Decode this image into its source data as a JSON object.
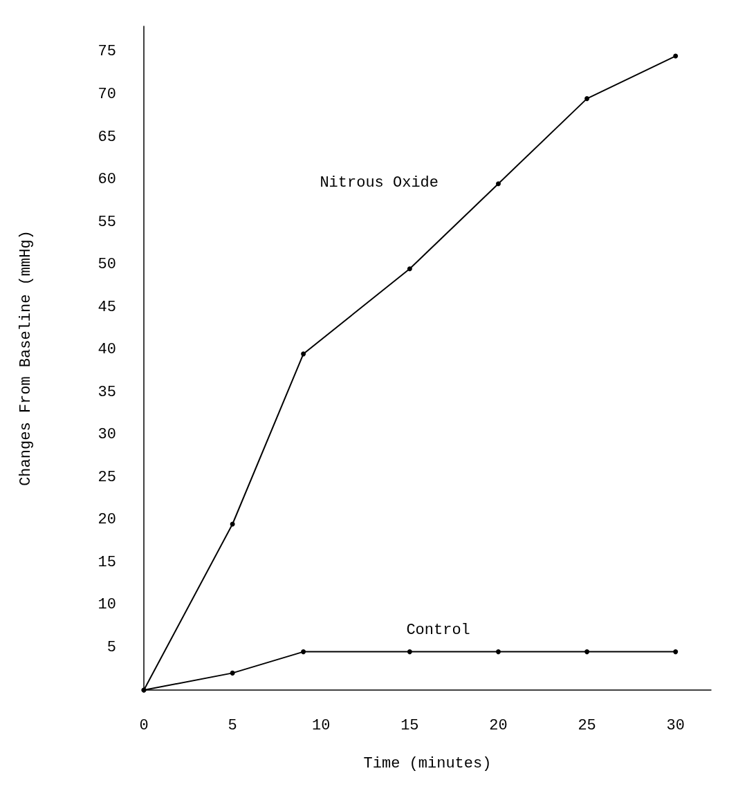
{
  "chart_data": {
    "type": "line",
    "xlabel": "Time (minutes)",
    "ylabel": "Changes From Baseline (mmHg)",
    "xlim": [
      0,
      32
    ],
    "ylim": [
      0,
      78
    ],
    "xticks": [
      0,
      5,
      10,
      15,
      20,
      25,
      30
    ],
    "yticks": [
      5,
      10,
      15,
      20,
      25,
      30,
      35,
      40,
      45,
      50,
      55,
      60,
      65,
      70,
      75
    ],
    "grid": false,
    "legend": false,
    "marker": "circle",
    "line_style": "solid",
    "series": [
      {
        "name": "Nitrous Oxide",
        "color": "#000000",
        "x": [
          0,
          5,
          9,
          15,
          20,
          25,
          30
        ],
        "values": [
          0,
          19.5,
          39.5,
          49.5,
          59.5,
          69.5,
          74.5
        ]
      },
      {
        "name": "Control",
        "color": "#000000",
        "x": [
          0,
          5,
          9,
          15,
          20,
          25,
          30
        ],
        "values": [
          0,
          2,
          4.5,
          4.5,
          4.5,
          4.5,
          4.5
        ]
      }
    ]
  }
}
